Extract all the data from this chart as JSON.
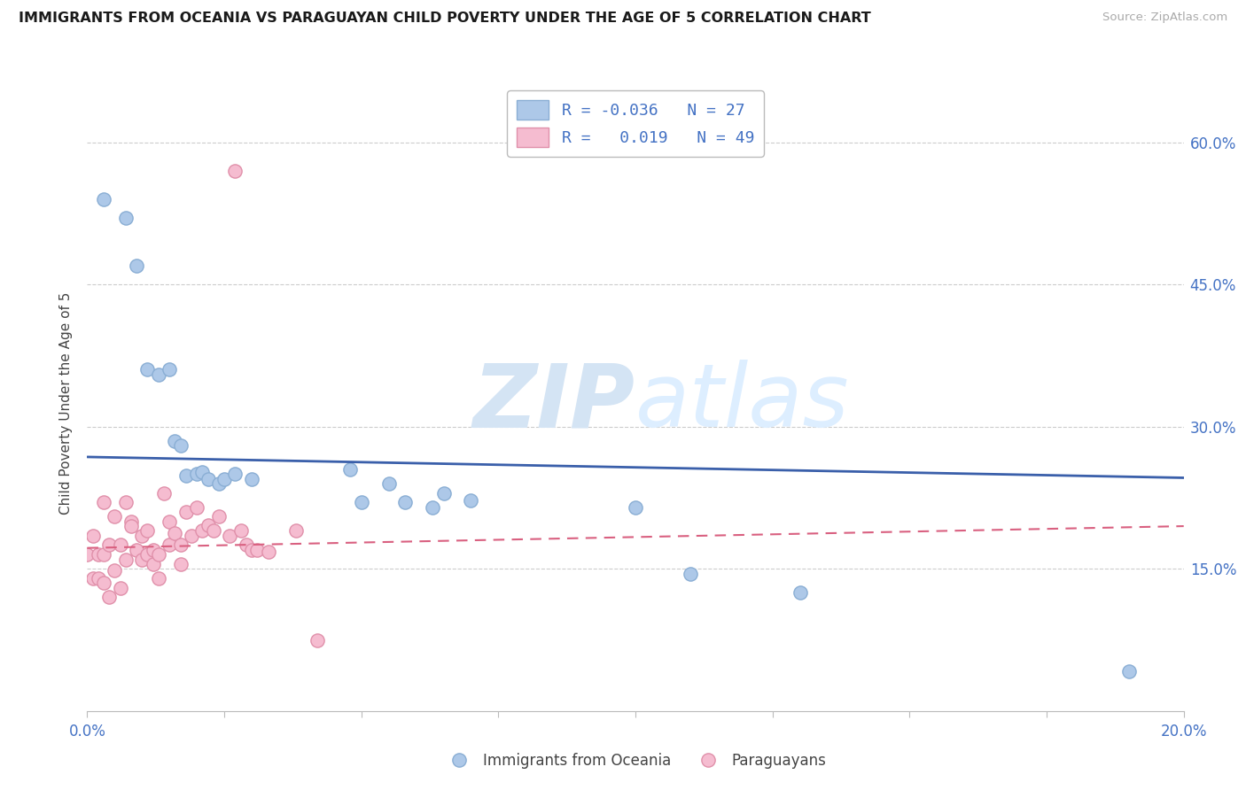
{
  "title": "IMMIGRANTS FROM OCEANIA VS PARAGUAYAN CHILD POVERTY UNDER THE AGE OF 5 CORRELATION CHART",
  "source": "Source: ZipAtlas.com",
  "ylabel": "Child Poverty Under the Age of 5",
  "y_ticks": [
    0.15,
    0.3,
    0.45,
    0.6
  ],
  "y_tick_labels": [
    "15.0%",
    "30.0%",
    "45.0%",
    "60.0%"
  ],
  "x_ticks": [
    0.0,
    0.025,
    0.05,
    0.075,
    0.1,
    0.125,
    0.15,
    0.175,
    0.2
  ],
  "legend_entry1": "R = -0.036   N = 27",
  "legend_entry2": "R =   0.019   N = 49",
  "legend_label1": "Immigrants from Oceania",
  "legend_label2": "Paraguayans",
  "blue_color": "#adc8e8",
  "pink_color": "#f5bcd0",
  "blue_line_color": "#3a5faa",
  "pink_line_color": "#d96080",
  "dot_border_blue": "#8aaed4",
  "dot_border_pink": "#e090aa",
  "background_color": "#ffffff",
  "grid_color": "#cccccc",
  "watermark_color": "#d4e4f4",
  "blue_scatter_x": [
    0.003,
    0.007,
    0.009,
    0.011,
    0.013,
    0.015,
    0.016,
    0.017,
    0.018,
    0.02,
    0.021,
    0.022,
    0.024,
    0.025,
    0.027,
    0.03,
    0.048,
    0.05,
    0.055,
    0.058,
    0.063,
    0.065,
    0.07,
    0.1,
    0.11,
    0.13,
    0.19
  ],
  "blue_scatter_y": [
    0.54,
    0.52,
    0.47,
    0.36,
    0.355,
    0.36,
    0.285,
    0.28,
    0.248,
    0.25,
    0.252,
    0.245,
    0.24,
    0.245,
    0.25,
    0.245,
    0.255,
    0.22,
    0.24,
    0.22,
    0.215,
    0.23,
    0.222,
    0.215,
    0.145,
    0.125,
    0.042
  ],
  "pink_scatter_x": [
    0.0,
    0.001,
    0.001,
    0.002,
    0.002,
    0.003,
    0.003,
    0.003,
    0.004,
    0.004,
    0.005,
    0.005,
    0.006,
    0.006,
    0.007,
    0.007,
    0.008,
    0.008,
    0.009,
    0.01,
    0.01,
    0.011,
    0.011,
    0.012,
    0.012,
    0.013,
    0.013,
    0.014,
    0.015,
    0.015,
    0.016,
    0.017,
    0.017,
    0.018,
    0.019,
    0.02,
    0.021,
    0.022,
    0.023,
    0.024,
    0.026,
    0.027,
    0.028,
    0.029,
    0.03,
    0.031,
    0.033,
    0.038,
    0.042
  ],
  "pink_scatter_y": [
    0.165,
    0.185,
    0.14,
    0.165,
    0.14,
    0.22,
    0.165,
    0.135,
    0.175,
    0.12,
    0.205,
    0.148,
    0.175,
    0.13,
    0.22,
    0.16,
    0.2,
    0.195,
    0.17,
    0.185,
    0.16,
    0.19,
    0.165,
    0.17,
    0.155,
    0.165,
    0.14,
    0.23,
    0.2,
    0.175,
    0.188,
    0.175,
    0.155,
    0.21,
    0.185,
    0.215,
    0.19,
    0.196,
    0.19,
    0.205,
    0.185,
    0.57,
    0.19,
    0.175,
    0.17,
    0.17,
    0.168,
    0.19,
    0.075
  ],
  "blue_trend_x": [
    0.0,
    0.2
  ],
  "blue_trend_y": [
    0.268,
    0.246
  ],
  "pink_trend_x": [
    0.0,
    0.2
  ],
  "pink_trend_y": [
    0.172,
    0.195
  ]
}
